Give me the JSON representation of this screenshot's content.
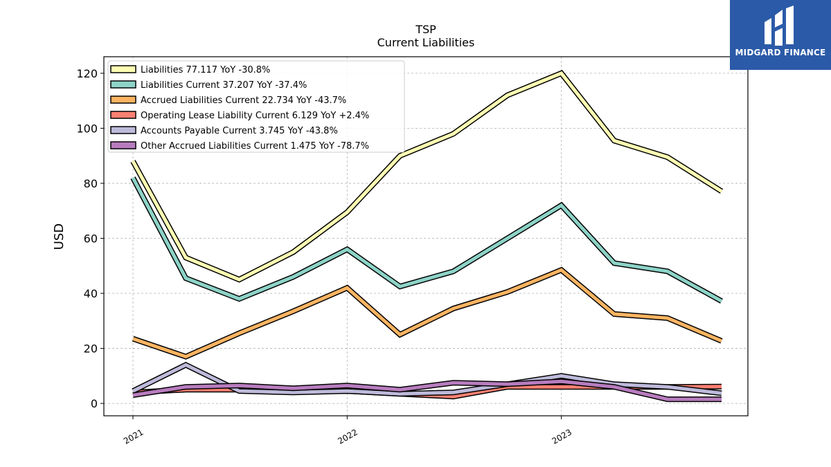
{
  "brand": {
    "name": "MIDGARD FINANCE",
    "bg_color": "#2b5ba8"
  },
  "chart_data": {
    "type": "line",
    "title": "TSP",
    "subtitle": "Current  Liabilities",
    "xlabel": "",
    "ylabel": "USD",
    "x": [
      "2021-01-01",
      "2021-04-01",
      "2021-07-01",
      "2021-10-01",
      "2022-01-01",
      "2022-04-01",
      "2022-07-01",
      "2022-10-01",
      "2023-01-01",
      "2023-04-01",
      "2023-07-01",
      "2023-10-01"
    ],
    "xticks": [
      "2021",
      "2022",
      "2023"
    ],
    "yticks": [
      0,
      20,
      40,
      60,
      80,
      100,
      120
    ],
    "ylim": [
      -4.5,
      126
    ],
    "grid": true,
    "legend_position": "top-left",
    "series": [
      {
        "name": "Liabilities  77.117 YoY -30.8%",
        "color": "#ffffb3",
        "values": [
          88,
          53,
          45,
          55,
          69.5,
          90,
          98,
          112,
          120,
          95.5,
          89.5,
          77.1
        ]
      },
      {
        "name": "Liabilities Current  37.207 YoY -37.4%",
        "color": "#8dd3c7",
        "values": [
          82,
          45.5,
          38,
          46,
          56,
          42.5,
          48,
          60,
          72,
          51,
          48,
          37.2
        ]
      },
      {
        "name": "Accrued Liabilities Current  22.734 YoY -43.7%",
        "color": "#fdb462",
        "values": [
          23.5,
          17,
          25.5,
          33.5,
          42,
          25,
          34.5,
          40.5,
          48.5,
          32.5,
          31,
          22.7
        ]
      },
      {
        "name": "Operating Lease Liability Current  6.129 YoY +2.4%",
        "color": "#fb8072",
        "values": [
          4,
          5,
          5,
          4.5,
          4.5,
          3.5,
          2.5,
          6,
          6,
          6,
          6,
          6.1
        ]
      },
      {
        "name": "Accounts Payable Current  3.745 YoY -43.8%",
        "color": "#bebada",
        "values": [
          4.5,
          14,
          4.5,
          4,
          4.5,
          3.5,
          4,
          7,
          10,
          7,
          6,
          3.7
        ]
      },
      {
        "name": "Other Accrued Liabilities Current  1.475 YoY -78.7%",
        "color": "#b87cbe",
        "values": [
          3,
          6,
          6.5,
          5.5,
          6.5,
          5,
          7.5,
          7,
          8,
          6,
          1.5,
          1.5
        ]
      }
    ]
  }
}
